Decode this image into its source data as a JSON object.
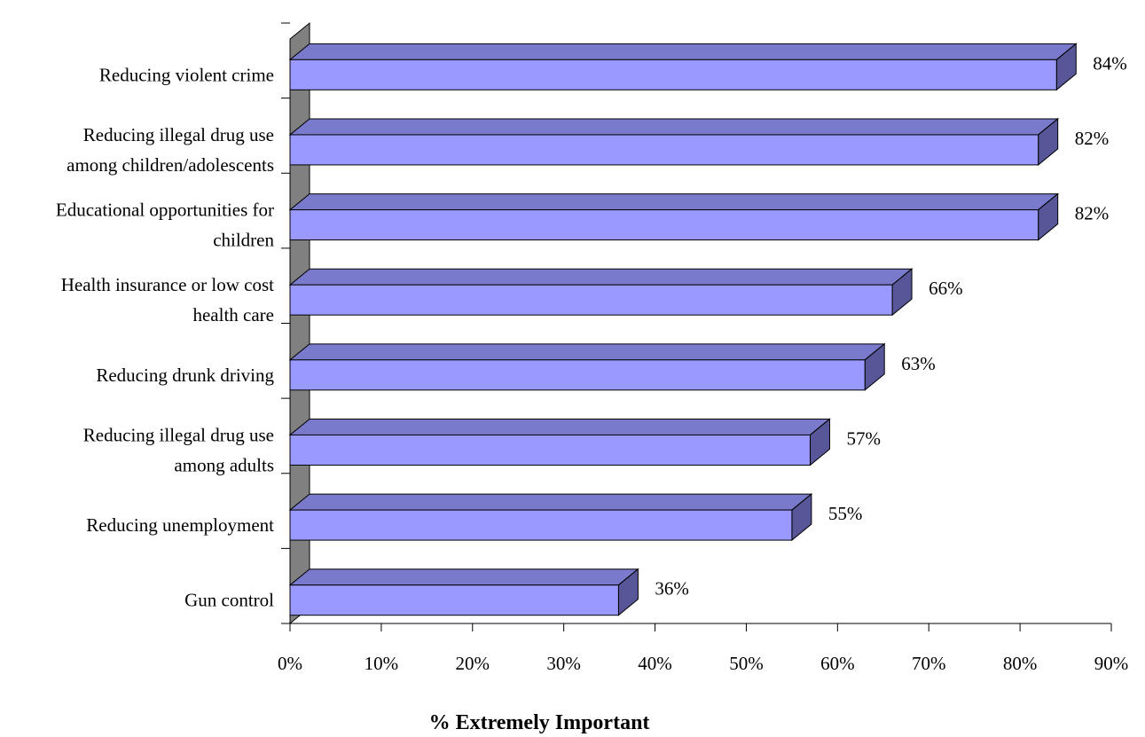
{
  "chart_data": {
    "type": "bar",
    "orientation": "horizontal",
    "three_d": true,
    "categories": [
      [
        "Reducing violent crime"
      ],
      [
        "Reducing illegal drug use",
        "among children/adolescents"
      ],
      [
        "Educational opportunities for",
        "children"
      ],
      [
        "Health insurance or low cost",
        "health care"
      ],
      [
        "Reducing drunk driving"
      ],
      [
        "Reducing illegal drug use",
        "among adults"
      ],
      [
        "Reducing unemployment"
      ],
      [
        "Gun control"
      ]
    ],
    "values": [
      84,
      82,
      82,
      66,
      63,
      57,
      55,
      36
    ],
    "data_labels": [
      "84%",
      "82%",
      "82%",
      "66%",
      "63%",
      "57%",
      "55%",
      "36%"
    ],
    "xlabel": "% Extremely Important",
    "xlim": [
      0,
      90
    ],
    "xticks": [
      0,
      10,
      20,
      30,
      40,
      50,
      60,
      70,
      80,
      90
    ],
    "xtick_labels": [
      "0%",
      "10%",
      "20%",
      "30%",
      "40%",
      "50%",
      "60%",
      "70%",
      "80%",
      "90%"
    ],
    "grid": false,
    "legend": "none",
    "colors": {
      "bar_front": "#9999ff",
      "bar_top": "#7a7acc",
      "bar_side": "#565699",
      "wall": "#808080",
      "outline": "#000000"
    }
  }
}
